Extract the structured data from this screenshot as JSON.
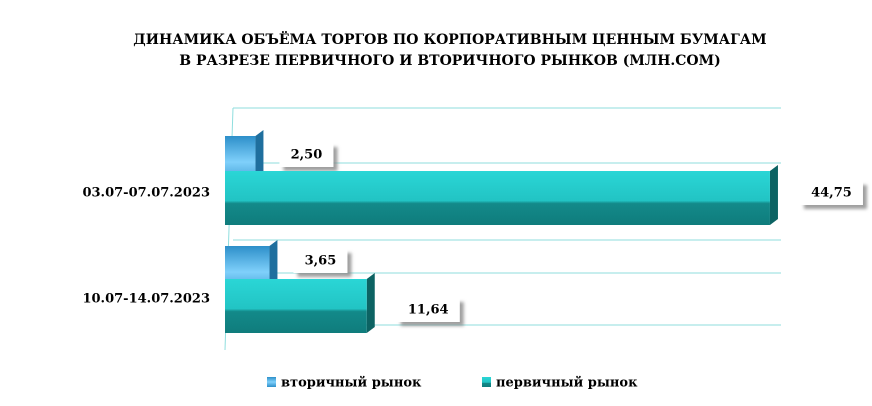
{
  "chart_data": {
    "type": "bar",
    "orientation": "horizontal",
    "title": "ДИНАМИКА ОБЪЁМА ТОРГОВ ПО КОРПОРАТИВНЫМ ЦЕННЫМ БУМАГАМ",
    "subtitle": "В РАЗРЕЗЕ ПЕРВИЧНОГО И ВТОРИЧНОГО РЫНКОВ  (МЛН.СОМ)",
    "categories": [
      "03.07-07.07.2023",
      "10.07-14.07.2023"
    ],
    "series": [
      {
        "name": "вторичный рынок",
        "color": "#4fb6ec",
        "values": [
          2.5,
          3.65
        ],
        "value_labels": [
          "2,50",
          "3,65"
        ]
      },
      {
        "name": "первичный рынок",
        "color": "#1fc7c7",
        "values": [
          44.75,
          11.64
        ],
        "value_labels": [
          "44,75",
          "11,64"
        ]
      }
    ],
    "xlim": [
      0,
      45
    ],
    "grid": true,
    "legend": "bottom"
  }
}
